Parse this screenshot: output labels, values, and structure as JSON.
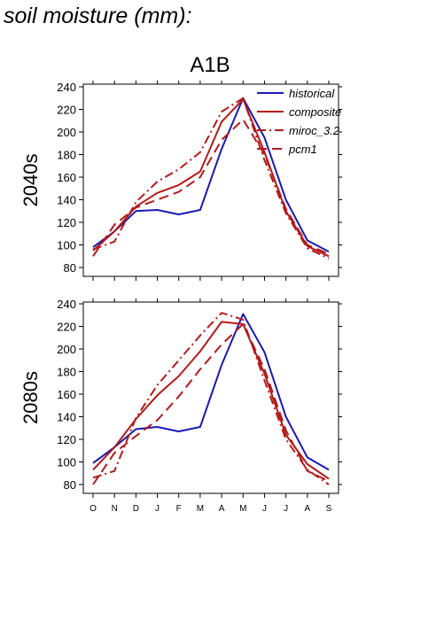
{
  "figure": {
    "title": "soil moisture (mm):",
    "scenario": "A1B"
  },
  "colors": {
    "historical": "#1a1ab4",
    "projection": "#b41a1a",
    "axis": "#000000"
  },
  "chart_data": [
    {
      "type": "line",
      "panel": "2040s",
      "ylabel": "2040s",
      "title": "A1B",
      "categories": [
        "O",
        "N",
        "D",
        "J",
        "F",
        "M",
        "A",
        "M",
        "J",
        "J",
        "A",
        "S"
      ],
      "ylim": [
        70,
        240
      ],
      "yticks": [
        80,
        100,
        120,
        140,
        160,
        180,
        200,
        220,
        240
      ],
      "grid": false,
      "legend": "top-right",
      "series": [
        {
          "name": "historical",
          "color": "#1a1ab4",
          "dash": "solid",
          "values": [
            98,
            112,
            130,
            131,
            127,
            131,
            185,
            230,
            195,
            140,
            104,
            94
          ]
        },
        {
          "name": "composite",
          "color": "#b41a1a",
          "dash": "solid",
          "values": [
            95,
            112,
            134,
            146,
            153,
            165,
            209,
            229,
            182,
            130,
            99,
            90
          ]
        },
        {
          "name": "miroc_3.2",
          "color": "#b41a1a",
          "dash": "dashdot",
          "values": [
            96,
            103,
            138,
            156,
            167,
            182,
            218,
            230,
            175,
            128,
            97,
            88
          ]
        },
        {
          "name": "pcm1",
          "color": "#b41a1a",
          "dash": "dash",
          "values": [
            90,
            118,
            133,
            140,
            147,
            160,
            193,
            211,
            180,
            132,
            100,
            92
          ]
        }
      ]
    },
    {
      "type": "line",
      "panel": "2080s",
      "ylabel": "2080s",
      "categories": [
        "O",
        "N",
        "D",
        "J",
        "F",
        "M",
        "A",
        "M",
        "J",
        "J",
        "A",
        "S"
      ],
      "ylim": [
        70,
        240
      ],
      "yticks": [
        80,
        100,
        120,
        140,
        160,
        180,
        200,
        220,
        240
      ],
      "grid": false,
      "series": [
        {
          "name": "historical",
          "color": "#1a1ab4",
          "dash": "solid",
          "values": [
            99,
            113,
            129,
            131,
            127,
            131,
            186,
            231,
            197,
            140,
            104,
            93
          ]
        },
        {
          "name": "composite",
          "color": "#b41a1a",
          "dash": "solid",
          "values": [
            93,
            113,
            138,
            159,
            176,
            198,
            224,
            222,
            178,
            124,
            98,
            85
          ]
        },
        {
          "name": "miroc_3.2",
          "color": "#b41a1a",
          "dash": "dashdot",
          "values": [
            86,
            92,
            139,
            168,
            190,
            212,
            232,
            226,
            172,
            120,
            93,
            80
          ]
        },
        {
          "name": "pcm1",
          "color": "#b41a1a",
          "dash": "dash",
          "values": [
            80,
            108,
            123,
            137,
            158,
            182,
            204,
            222,
            182,
            128,
            92,
            83
          ]
        }
      ]
    }
  ]
}
